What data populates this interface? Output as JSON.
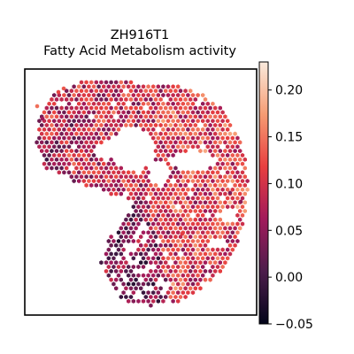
{
  "chart_data": {
    "type": "scatter",
    "title": "ZH916T1",
    "subtitle": "Fatty Acid Metabolism activity",
    "xlabel": "",
    "ylabel": "",
    "grid": false,
    "legend": "none",
    "colorbar": {
      "placement": "right",
      "colormap": "rocket",
      "vmin": -0.05,
      "vmax": 0.23,
      "ticks": [
        -0.05,
        0.0,
        0.05,
        0.1,
        0.15,
        0.2
      ],
      "tick_labels": [
        "−0.05",
        "0.00",
        "0.05",
        "0.10",
        "0.15",
        "0.20"
      ],
      "colors": [
        "#03051a",
        "#4c1d4b",
        "#a11a5b",
        "#e83f3f",
        "#f69c73",
        "#faebdd"
      ]
    },
    "marker": "hexagon",
    "background": "#ffffff",
    "frame_color": "#000000"
  }
}
